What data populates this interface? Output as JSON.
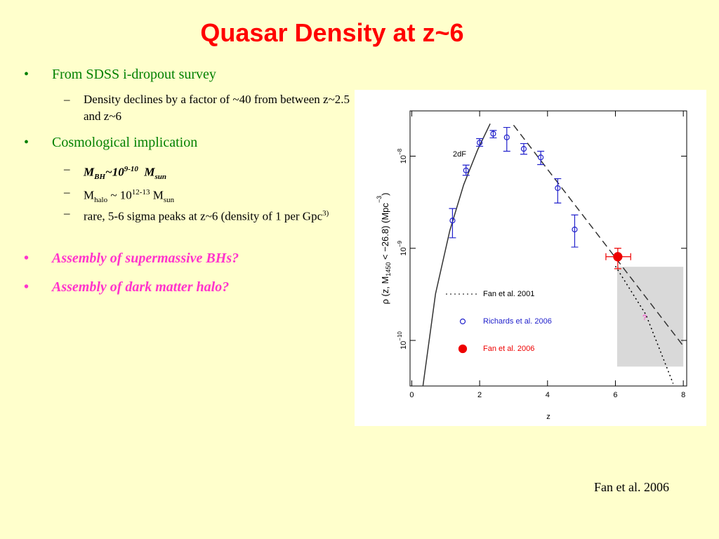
{
  "title": "Quasar Density at z~6",
  "bullets": {
    "b1": "From SDSS i-dropout survey",
    "b1_1": "Density declines by a factor of ~40 from between z~2.5 and z~6",
    "b2": "Cosmological implication",
    "b2_1": [
      "M",
      "BH",
      "~10",
      "9-10",
      "M",
      "sun"
    ],
    "b2_2": [
      "M",
      "halo",
      " ~ 10",
      "12-13",
      " M",
      "sun"
    ],
    "b2_3": [
      "rare, 5-6 sigma peaks at z~6 (density of 1 per Gpc",
      "3)"
    ],
    "b3": "Assembly of supermassive BHs?",
    "b4": "Assembly of dark matter halo?"
  },
  "chart_data": {
    "type": "scatter",
    "x_label": "z",
    "y_label": [
      "ρ (z, M",
      "1450",
      " < −26.8) (Mpc",
      "−3",
      ")"
    ],
    "annotations": [
      "2dF",
      "?"
    ],
    "xlim": [
      -0.05,
      8.1
    ],
    "xticks": [
      0,
      2,
      4,
      6,
      8
    ],
    "ylim": [
      3.2e-11,
      3.1e-08
    ],
    "log_y": true,
    "yticks": [
      {
        "value": 1e-10,
        "label": "10",
        "sup": "−10"
      },
      {
        "value": 1e-09,
        "label": "10",
        "sup": "−9"
      },
      {
        "value": 1e-08,
        "label": "10",
        "sup": "−8"
      }
    ],
    "highlight": {
      "x": [
        6.05,
        8
      ],
      "y": [
        5.2e-11,
        6.3e-10
      ],
      "color": "#d9d9d9"
    },
    "legend": "lower-left",
    "series": [
      {
        "style": "solid",
        "color": "#333333",
        "x": [
          0.33,
          0.7,
          1.12,
          1.53,
          1.94,
          2.31
        ],
        "values": [
          3.2e-11,
          3.2e-10,
          1.55e-09,
          4.9e-09,
          1.17e-08,
          2.25e-08
        ]
      },
      {
        "style": "dashed",
        "color": "#333333",
        "x": [
          3,
          8
        ],
        "values": [
          2.17e-08,
          8.7e-11
        ]
      },
      {
        "name": "Fan et al. 2001",
        "style": "dotted",
        "color": "#000000",
        "x": [
          6,
          6.9,
          7.7
        ],
        "values": [
          6.4e-10,
          1.9e-10,
          3.4e-11
        ]
      },
      {
        "name": "Richards et al. 2006",
        "style": "open-circle",
        "color": "#2222cc",
        "x": [
          1.2,
          1.6,
          2.0,
          2.4,
          2.8,
          3.3,
          3.8,
          4.3,
          4.8
        ],
        "values": [
          2e-09,
          7e-09,
          1.4e-08,
          1.75e-08,
          1.6e-08,
          1.2e-08,
          9.7e-09,
          4.5e-09,
          1.6e-09
        ],
        "lower": [
          1.3e-09,
          6.2e-09,
          1.28e-08,
          1.58e-08,
          1.13e-08,
          1.05e-08,
          8.1e-09,
          3.1e-09,
          1.03e-09
        ],
        "upper": [
          2.7e-09,
          8e-09,
          1.55e-08,
          1.9e-08,
          2.05e-08,
          1.37e-08,
          1.13e-08,
          5.7e-09,
          2.3e-09
        ]
      },
      {
        "name": "Fan et al. 2006",
        "style": "filled-circle",
        "color": "#ee0000",
        "x": [
          6.07
        ],
        "values": [
          8.1e-10
        ],
        "lower": [
          6e-10
        ],
        "upper": [
          1e-09
        ],
        "xlower": [
          5.72
        ],
        "xupper": [
          6.45
        ]
      }
    ]
  },
  "credit": "Fan et al. 2006"
}
